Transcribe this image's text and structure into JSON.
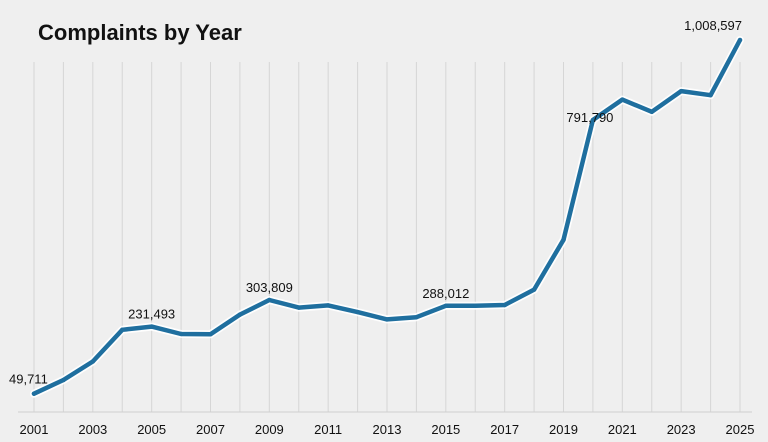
{
  "chart_data": {
    "type": "line",
    "title": "Complaints by Year",
    "xlabel": "",
    "ylabel": "",
    "x": [
      2001,
      2002,
      2003,
      2004,
      2005,
      2006,
      2007,
      2008,
      2009,
      2010,
      2011,
      2012,
      2013,
      2014,
      2015,
      2016,
      2017,
      2018,
      2019,
      2020,
      2021,
      2022,
      2023,
      2024,
      2025
    ],
    "x_tick_labels": [
      "2001",
      "2003",
      "2005",
      "2007",
      "2009",
      "2011",
      "2013",
      "2015",
      "2017",
      "2019",
      "2021",
      "2023",
      "2025"
    ],
    "series": [
      {
        "values": [
          49711,
          86700,
          137000,
          223000,
          231493,
          211600,
          211000,
          264000,
          303809,
          283000,
          289000,
          271000,
          251000,
          257000,
          288012,
          288000,
          290000,
          332000,
          467000,
          791790,
          847000,
          814000,
          870000,
          859000,
          1008597
        ]
      }
    ],
    "data_labels": [
      {
        "index": 0,
        "text": "49,711"
      },
      {
        "index": 4,
        "text": "231,493"
      },
      {
        "index": 8,
        "text": "303,809"
      },
      {
        "index": 14,
        "text": "288,012"
      },
      {
        "index": 19,
        "text": "791,790"
      },
      {
        "index": 24,
        "text": "1,008,597"
      }
    ],
    "ylim": [
      0,
      1090000
    ],
    "grid": "vertical",
    "legend": "none",
    "line_color": "#1f6f9f"
  }
}
